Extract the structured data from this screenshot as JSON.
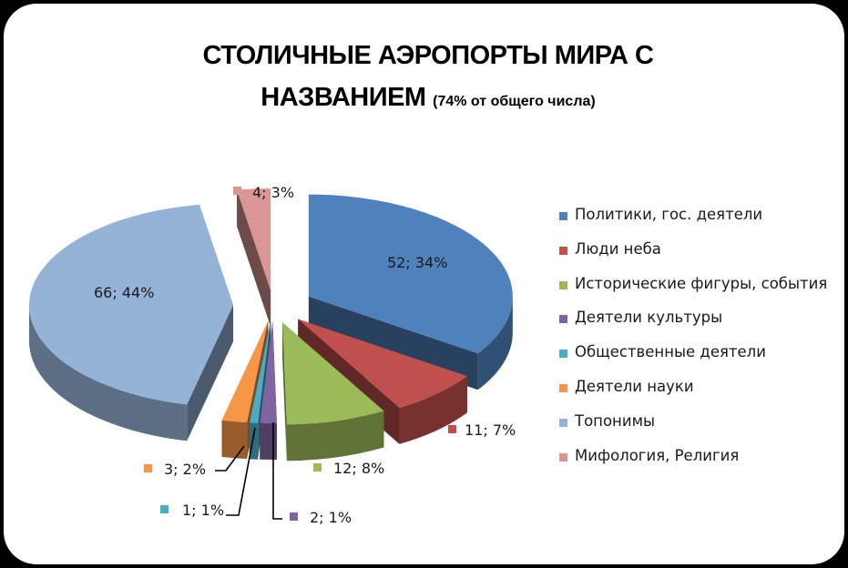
{
  "chart_data": {
    "type": "pie",
    "title": "СТОЛИЧНЫЕ АЭРОПОРТЫ МИРА С",
    "title_line2": "НАЗВАНИЕМ",
    "subtitle": "(74% от общего числа)",
    "legend_position": "right",
    "slices": [
      {
        "name": "Политики, гос. деятели",
        "value": 52,
        "percent": 34,
        "label": "52; 34%",
        "color": "#4F81BD"
      },
      {
        "name": "Люди неба",
        "value": 11,
        "percent": 7,
        "label": "11; 7%",
        "color": "#C0504D"
      },
      {
        "name": "Исторические фигуры, события",
        "value": 12,
        "percent": 8,
        "label": "12; 8%",
        "color": "#9BBB59"
      },
      {
        "name": "Деятели культуры",
        "value": 2,
        "percent": 1,
        "label": "2; 1%",
        "color": "#8064A2"
      },
      {
        "name": "Общественные деятели",
        "value": 1,
        "percent": 1,
        "label": "1; 1%",
        "color": "#4BACC6"
      },
      {
        "name": "Деятели науки",
        "value": 3,
        "percent": 2,
        "label": "3; 2%",
        "color": "#F79646"
      },
      {
        "name": "Топонимы",
        "value": 66,
        "percent": 44,
        "label": "66; 44%",
        "color": "#95B3D7"
      },
      {
        "name": "Мифология, Религия",
        "value": 4,
        "percent": 3,
        "label": "4; 3%",
        "color": "#D99694"
      }
    ]
  }
}
